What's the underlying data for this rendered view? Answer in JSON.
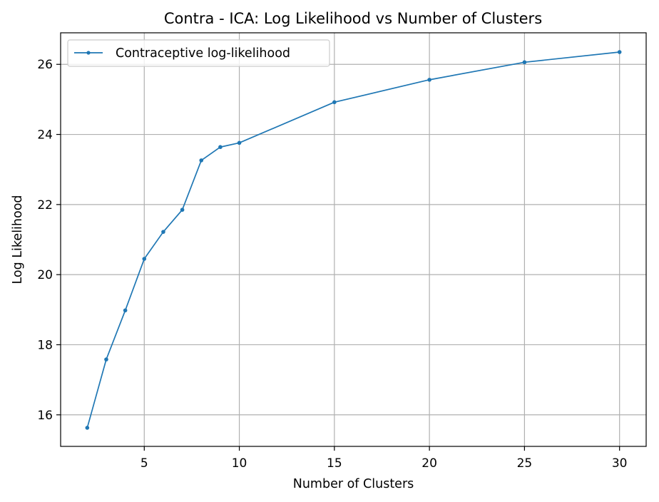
{
  "chart_data": {
    "type": "line",
    "title": "Contra - ICA: Log Likelihood vs Number of Clusters",
    "xlabel": "Number of Clusters",
    "ylabel": "Log Likelihood",
    "xlim": [
      0.6,
      31.4
    ],
    "ylim": [
      15.1,
      26.9
    ],
    "x_ticks": [
      5,
      10,
      15,
      20,
      25,
      30
    ],
    "y_ticks": [
      16,
      18,
      20,
      22,
      24,
      26
    ],
    "grid": true,
    "legend_position": "top-left",
    "series": [
      {
        "name": "Contraceptive log-likelihood",
        "color": "#1f77b4",
        "marker": "point",
        "x": [
          2,
          3,
          4,
          5,
          6,
          7,
          8,
          9,
          10,
          15,
          20,
          25,
          30
        ],
        "y": [
          15.63,
          17.58,
          18.98,
          20.45,
          21.22,
          21.85,
          23.26,
          23.64,
          23.76,
          24.92,
          25.56,
          26.06,
          26.35
        ]
      }
    ]
  }
}
